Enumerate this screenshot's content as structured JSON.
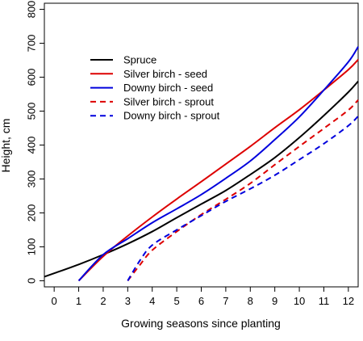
{
  "chart_data": {
    "type": "line",
    "xlabel": "Growing seasons since planting",
    "ylabel": "Height, cm",
    "xlim": [
      -0.4,
      12.4
    ],
    "ylim": [
      -18,
      818
    ],
    "xticks": [
      0,
      1,
      2,
      3,
      4,
      5,
      6,
      7,
      8,
      9,
      10,
      11,
      12
    ],
    "yticks": [
      0,
      100,
      200,
      300,
      400,
      500,
      600,
      700,
      800
    ],
    "grid": false,
    "legend_position": "top-left",
    "series": [
      {
        "name": "Spruce",
        "color": "#000000",
        "dash": "solid",
        "x": [
          -0.4,
          0,
          1,
          2,
          3,
          4,
          5,
          6,
          7,
          8,
          9,
          10,
          11,
          12,
          12.4
        ],
        "y": [
          12,
          22,
          48,
          77,
          109,
          145,
          186,
          226,
          266,
          313,
          363,
          422,
          487,
          556,
          588
        ]
      },
      {
        "name": "Silver birch - seed",
        "color": "#dd0000",
        "dash": "solid",
        "x": [
          1,
          2,
          3,
          4,
          5,
          6,
          7,
          8,
          9,
          10,
          11,
          12,
          12.4
        ],
        "y": [
          0,
          72,
          132,
          188,
          241,
          292,
          344,
          396,
          451,
          504,
          562,
          622,
          652
        ]
      },
      {
        "name": "Downy birch - seed",
        "color": "#0000dd",
        "dash": "solid",
        "x": [
          1,
          2,
          3,
          4,
          5,
          6,
          7,
          8,
          9,
          10,
          11,
          12,
          12.4
        ],
        "y": [
          0,
          77,
          124,
          171,
          212,
          254,
          302,
          353,
          416,
          483,
          562,
          645,
          690
        ]
      },
      {
        "name": "Silver birch - sprout",
        "color": "#dd0000",
        "dash": "dashed",
        "x": [
          3,
          3.5,
          4,
          5,
          6,
          7,
          8,
          9,
          10,
          11,
          12,
          12.4
        ],
        "y": [
          0,
          47,
          90,
          145,
          195,
          240,
          287,
          342,
          396,
          449,
          503,
          533
        ]
      },
      {
        "name": "Downy birch - sprout",
        "color": "#0000dd",
        "dash": "dashed",
        "x": [
          3,
          3.5,
          4,
          5,
          6,
          7,
          8,
          9,
          10,
          11,
          12,
          12.4
        ],
        "y": [
          0,
          60,
          105,
          150,
          192,
          234,
          271,
          311,
          357,
          404,
          457,
          485
        ]
      }
    ]
  }
}
